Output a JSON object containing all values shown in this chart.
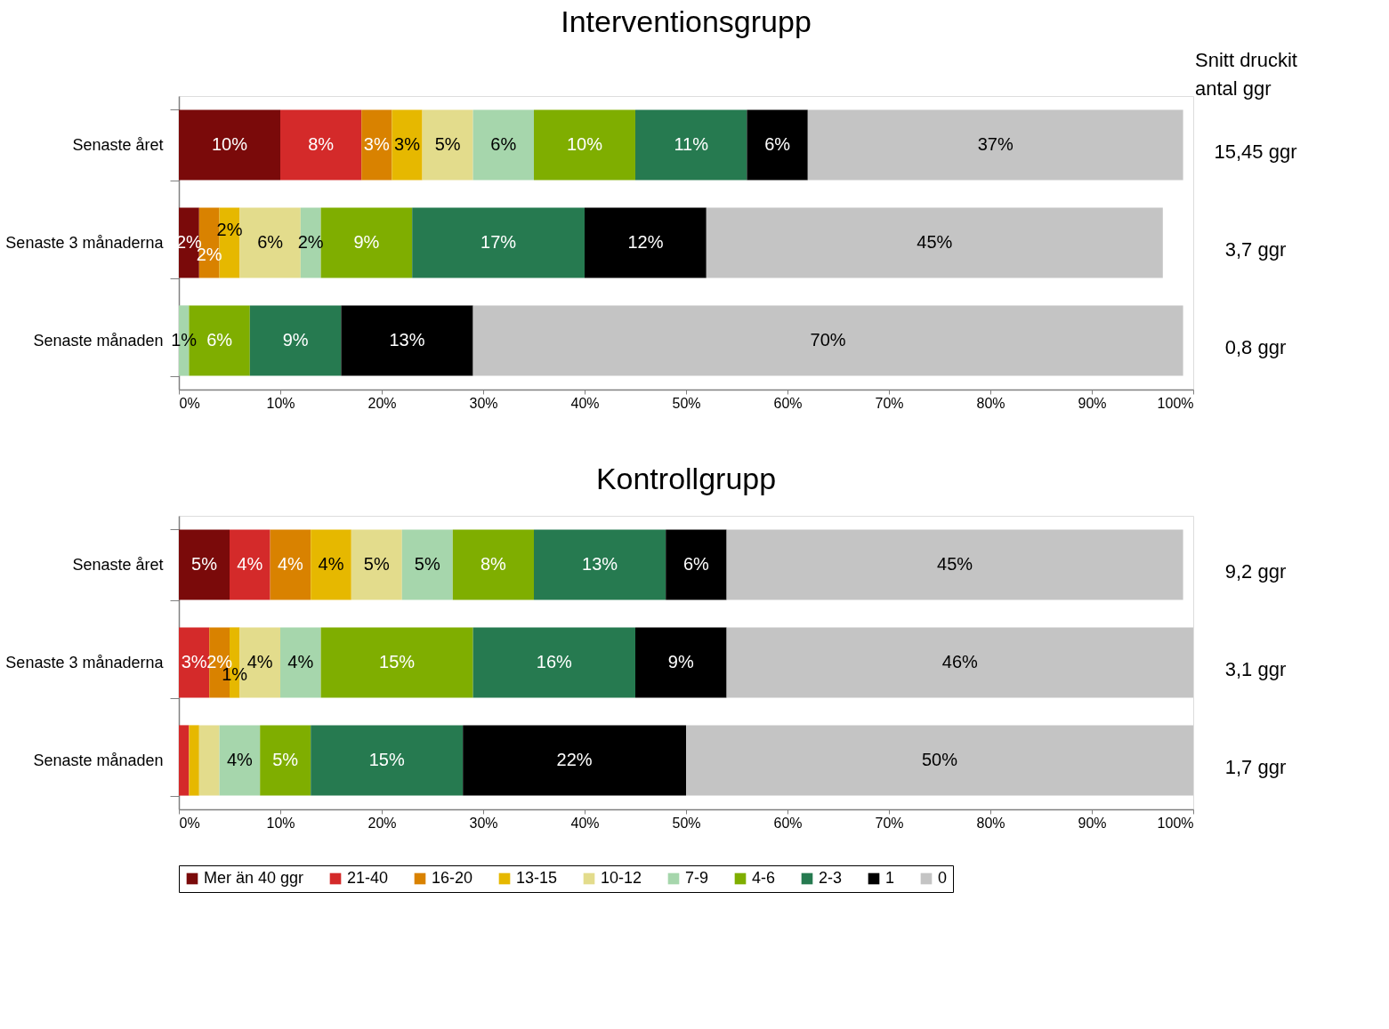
{
  "chart_data": [
    {
      "type": "bar",
      "orientation": "horizontal",
      "stacked": true,
      "title": "Interventionsgrupp",
      "categories": [
        "Senaste året",
        "Senaste 3 månaderna",
        "Senaste månaden"
      ],
      "xlim": [
        0,
        100
      ],
      "xticks": [
        {
          "value": 0,
          "label": "0%"
        },
        {
          "value": 10,
          "label": "10%"
        },
        {
          "value": 20,
          "label": "20%"
        },
        {
          "value": 30,
          "label": "30%"
        },
        {
          "value": 40,
          "label": "40%"
        },
        {
          "value": 50,
          "label": "50%"
        },
        {
          "value": 60,
          "label": "60%"
        },
        {
          "value": 70,
          "label": "70%"
        },
        {
          "value": 80,
          "label": "80%"
        },
        {
          "value": 90,
          "label": "90%"
        },
        {
          "value": 100,
          "label": "100%"
        }
      ],
      "grid": false,
      "legend": false,
      "annotations": [
        "Snitt druckit antal ggr",
        "15,45 ggr",
        "3,7 ggr",
        "0,8 ggr"
      ],
      "series": [
        {
          "color": "#7a0a0a",
          "values": [
            10,
            2,
            null
          ],
          "value_labels": [
            "10%",
            "2%",
            null
          ]
        },
        {
          "color": "#d42a2a",
          "values": [
            8,
            null,
            null
          ],
          "value_labels": [
            "8%",
            null,
            null
          ]
        },
        {
          "color": "#d98200",
          "values": [
            3,
            2,
            null
          ],
          "value_labels": [
            "3%",
            "2%",
            null
          ]
        },
        {
          "color": "#e6b800",
          "values": [
            3,
            2,
            null
          ],
          "value_labels": [
            "3%",
            "2%",
            null
          ]
        },
        {
          "color": "#e3dc8c",
          "values": [
            5,
            6,
            null
          ],
          "value_labels": [
            "5%",
            "6%",
            null
          ]
        },
        {
          "color": "#a6d6ac",
          "values": [
            6,
            2,
            1
          ],
          "value_labels": [
            "6%",
            "2%",
            "1%"
          ]
        },
        {
          "color": "#7fae00",
          "values": [
            10,
            9,
            6
          ],
          "value_labels": [
            "10%",
            "9%",
            "6%"
          ]
        },
        {
          "color": "#267a50",
          "values": [
            11,
            17,
            9
          ],
          "value_labels": [
            "11%",
            "17%",
            "9%"
          ]
        },
        {
          "color": "#000000",
          "values": [
            6,
            12,
            13
          ],
          "value_labels": [
            "6%",
            "12%",
            "13%"
          ]
        },
        {
          "color": "#c4c4c4",
          "values": [
            37,
            45,
            70
          ],
          "value_labels": [
            "37%",
            "45%",
            "70%"
          ]
        }
      ]
    },
    {
      "type": "bar",
      "orientation": "horizontal",
      "stacked": true,
      "title": "Kontrollgrupp",
      "categories": [
        "Senaste året",
        "Senaste 3 månaderna",
        "Senaste månaden"
      ],
      "xlim": [
        0,
        100
      ],
      "xticks": [
        {
          "value": 0,
          "label": "0%"
        },
        {
          "value": 10,
          "label": "10%"
        },
        {
          "value": 20,
          "label": "20%"
        },
        {
          "value": 30,
          "label": "30%"
        },
        {
          "value": 40,
          "label": "40%"
        },
        {
          "value": 50,
          "label": "50%"
        },
        {
          "value": 60,
          "label": "60%"
        },
        {
          "value": 70,
          "label": "70%"
        },
        {
          "value": 80,
          "label": "80%"
        },
        {
          "value": 90,
          "label": "90%"
        },
        {
          "value": 100,
          "label": "100%"
        }
      ],
      "grid": false,
      "legend": "bottom",
      "annotations": [
        "9,2 ggr",
        "3,1 ggr",
        "1,7 ggr"
      ],
      "series": [
        {
          "name": "Mer än 40 ggr",
          "color": "#7a0a0a",
          "values": [
            5,
            null,
            null
          ],
          "value_labels": [
            "5%",
            null,
            null
          ]
        },
        {
          "name": "21-40",
          "color": "#d42a2a",
          "values": [
            4,
            3,
            1
          ],
          "value_labels": [
            "4%",
            "3%",
            null
          ]
        },
        {
          "name": "16-20",
          "color": "#d98200",
          "values": [
            4,
            2,
            null
          ],
          "value_labels": [
            "4%",
            "2%",
            null
          ]
        },
        {
          "name": "13-15",
          "color": "#e6b800",
          "values": [
            4,
            1,
            1
          ],
          "value_labels": [
            "4%",
            "1%",
            null
          ]
        },
        {
          "name": "10-12",
          "color": "#e3dc8c",
          "values": [
            5,
            4,
            2
          ],
          "value_labels": [
            "5%",
            "4%",
            null
          ]
        },
        {
          "name": "7-9",
          "color": "#a6d6ac",
          "values": [
            5,
            4,
            4
          ],
          "value_labels": [
            "5%",
            "4%",
            "4%"
          ]
        },
        {
          "name": "4-6",
          "color": "#7fae00",
          "values": [
            8,
            15,
            5
          ],
          "value_labels": [
            "8%",
            "15%",
            "5%"
          ]
        },
        {
          "name": "2-3",
          "color": "#267a50",
          "values": [
            13,
            16,
            15
          ],
          "value_labels": [
            "13%",
            "16%",
            "15%"
          ]
        },
        {
          "name": "1",
          "color": "#000000",
          "values": [
            6,
            9,
            22
          ],
          "value_labels": [
            "6%",
            "9%",
            "22%"
          ]
        },
        {
          "name": "0",
          "color": "#c4c4c4",
          "values": [
            45,
            46,
            50
          ],
          "value_labels": [
            "45%",
            "46%",
            "50%"
          ]
        }
      ]
    }
  ]
}
